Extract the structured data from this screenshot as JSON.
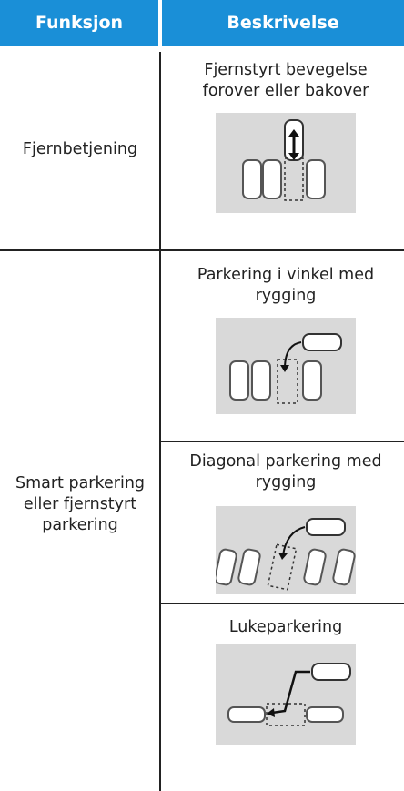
{
  "table": {
    "headers": [
      "Funksjon",
      "Beskrivelse"
    ],
    "rows": [
      {
        "function": "Fjernbetjening",
        "descriptions": [
          "Fjernstyrt bevegelse forover eller bakover"
        ]
      },
      {
        "function": "Smart parkering eller fjernstyrt parkering",
        "descriptions": [
          "Parkering i vinkel med rygging",
          "Diagonal parkering med rygging",
          "Lukeparkering"
        ]
      }
    ]
  }
}
